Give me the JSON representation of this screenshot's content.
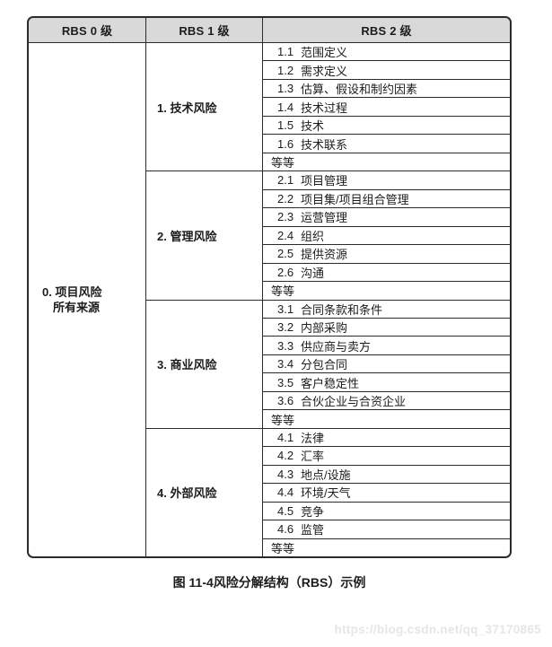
{
  "table": {
    "headers": [
      {
        "label": "RBS 0 级"
      },
      {
        "label": "RBS 1 级"
      },
      {
        "label": "RBS 2 级"
      }
    ],
    "level0": {
      "line1": "0. 项目风险",
      "line2": "所有来源"
    },
    "sections": [
      {
        "label": "1. 技术风险",
        "items": [
          {
            "num": "1.1",
            "text": "范围定义"
          },
          {
            "num": "1.2",
            "text": "需求定义"
          },
          {
            "num": "1.3",
            "text": "估算、假设和制约因素"
          },
          {
            "num": "1.4",
            "text": "技术过程"
          },
          {
            "num": "1.5",
            "text": "技术"
          },
          {
            "num": "1.6",
            "text": "技术联系"
          }
        ],
        "etc": "等等"
      },
      {
        "label": "2. 管理风险",
        "items": [
          {
            "num": "2.1",
            "text": "项目管理"
          },
          {
            "num": "2.2",
            "text": "项目集/项目组合管理"
          },
          {
            "num": "2.3",
            "text": "运营管理"
          },
          {
            "num": "2.4",
            "text": "组织"
          },
          {
            "num": "2.5",
            "text": "提供资源"
          },
          {
            "num": "2.6",
            "text": "沟通"
          }
        ],
        "etc": "等等"
      },
      {
        "label": "3. 商业风险",
        "items": [
          {
            "num": "3.1",
            "text": "合同条款和条件"
          },
          {
            "num": "3.2",
            "text": "内部采购"
          },
          {
            "num": "3.3",
            "text": "供应商与卖方"
          },
          {
            "num": "3.4",
            "text": "分包合同"
          },
          {
            "num": "3.5",
            "text": "客户稳定性"
          },
          {
            "num": "3.6",
            "text": "合伙企业与合资企业"
          }
        ],
        "etc": "等等"
      },
      {
        "label": "4. 外部风险",
        "items": [
          {
            "num": "4.1",
            "text": "法律"
          },
          {
            "num": "4.2",
            "text": "汇率"
          },
          {
            "num": "4.3",
            "text": "地点/设施"
          },
          {
            "num": "4.4",
            "text": "环境/天气"
          },
          {
            "num": "4.5",
            "text": "竞争"
          },
          {
            "num": "4.6",
            "text": "监管"
          }
        ],
        "etc": "等等"
      }
    ]
  },
  "caption": "图 11-4风险分解结构（RBS）示例",
  "watermark": "https://blog.csdn.net/qq_37170865",
  "colors": {
    "header_bg": "#d9d9d9",
    "border": "#2b2b2b",
    "text": "#1c1c1c",
    "watermark": "#e6e6e6"
  }
}
